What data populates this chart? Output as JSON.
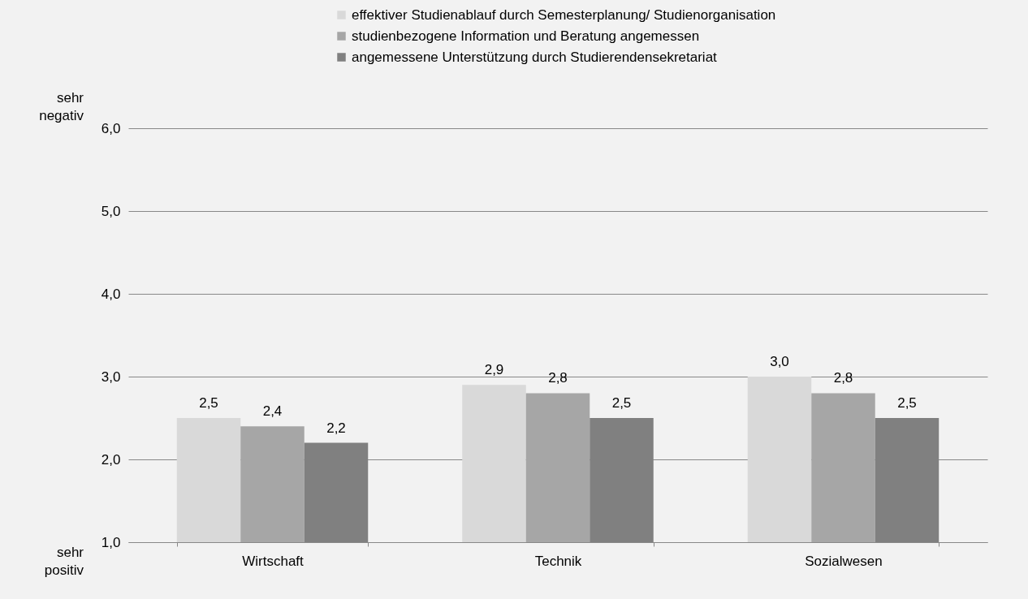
{
  "chart_data": {
    "type": "bar",
    "categories": [
      "Wirtschaft",
      "Technik",
      "Sozialwesen"
    ],
    "series": [
      {
        "name": "effektiver Studienablauf durch Semesterplanung/ Studienorganisation",
        "color": "#d9d9d9",
        "values": [
          2.5,
          2.9,
          3.0
        ],
        "value_labels": [
          "2,5",
          "2,9",
          "3,0"
        ]
      },
      {
        "name": "studienbezogene Information und Beratung angemessen",
        "color": "#a6a6a6",
        "values": [
          2.4,
          2.8,
          2.8
        ],
        "value_labels": [
          "2,4",
          "2,8",
          "2,8"
        ]
      },
      {
        "name": "angemessene Unterstützung durch Studierendensekretariat",
        "color": "#808080",
        "values": [
          2.2,
          2.5,
          2.5
        ],
        "value_labels": [
          "2,2",
          "2,5",
          "2,5"
        ]
      }
    ],
    "ylim": [
      1,
      6
    ],
    "yticks": [
      {
        "value": 1,
        "label": "1,0"
      },
      {
        "value": 2,
        "label": "2,0"
      },
      {
        "value": 3,
        "label": "3,0"
      },
      {
        "value": 4,
        "label": "4,0"
      },
      {
        "value": 5,
        "label": "5,0"
      },
      {
        "value": 6,
        "label": "6,0"
      }
    ],
    "annotations": [
      "sehr negativ",
      "sehr positiv"
    ],
    "grid": "y",
    "legend": "top"
  }
}
